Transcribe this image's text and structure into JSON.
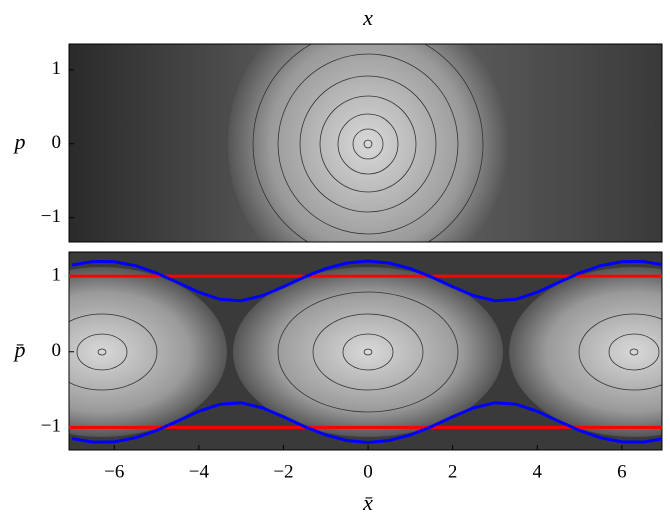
{
  "chart_data": [
    {
      "type": "line",
      "title": "x",
      "ylabel": "p",
      "xlim": [
        -7.07,
        6.95
      ],
      "ylim": [
        -1.33,
        1.35
      ],
      "yticks": [
        {
          "value": -1,
          "label": "−1"
        },
        0,
        1
      ],
      "series": []
    },
    {
      "type": "line",
      "xlabel": "x̄",
      "ylabel": "p̄",
      "xlim": [
        -7.07,
        6.95
      ],
      "ylim": [
        -1.3,
        1.32
      ],
      "xticks": [
        {
          "value": -6,
          "label": "−6"
        },
        {
          "value": -4,
          "label": "−4"
        },
        {
          "value": -2,
          "label": "−2"
        },
        0,
        2,
        4,
        6
      ],
      "yticks": [
        {
          "value": -1,
          "label": "−1"
        },
        0,
        1
      ],
      "series": [
        {
          "color": "#ff0000",
          "x": [
            -7.07,
            6.95
          ],
          "values": [
            1,
            1
          ]
        },
        {
          "color": "#ff0000",
          "x": [
            -7.07,
            6.95
          ],
          "values": [
            -1,
            -1
          ]
        },
        {
          "color": "#0000ff",
          "x": [
            -7,
            -6.5,
            -6,
            -5.5,
            -5,
            -4.5,
            -4,
            -3.5,
            -3,
            -2.5,
            -2,
            -1.5,
            -1,
            -0.5,
            0,
            0.5,
            1,
            1.5,
            2,
            2.5,
            3,
            3.5,
            4,
            4.5,
            5,
            5.5,
            6,
            6.5,
            7
          ],
          "values": [
            1.148,
            1.195,
            1.192,
            1.138,
            1.042,
            0.917,
            0.788,
            0.694,
            0.675,
            0.741,
            0.86,
            0.99,
            1.101,
            1.174,
            1.2,
            1.174,
            1.101,
            0.99,
            0.86,
            0.741,
            0.675,
            0.694,
            0.788,
            0.917,
            1.042,
            1.138,
            1.192,
            1.195,
            1.148
          ]
        },
        {
          "color": "#0000ff",
          "x": [
            -7,
            -6.5,
            -6,
            -5.5,
            -5,
            -4.5,
            -4,
            -3.5,
            -3,
            -2.5,
            -2,
            -1.5,
            -1,
            -0.5,
            0,
            0.5,
            1,
            1.5,
            2,
            2.5,
            3,
            3.5,
            4,
            4.5,
            5,
            5.5,
            6,
            6.5,
            7
          ],
          "values": [
            -1.148,
            -1.195,
            -1.192,
            -1.138,
            -1.042,
            -0.917,
            -0.788,
            -0.694,
            -0.675,
            -0.741,
            -0.86,
            -0.99,
            -1.101,
            -1.174,
            -1.2,
            -1.174,
            -1.101,
            -0.99,
            -0.86,
            -0.741,
            -0.675,
            -0.694,
            -0.788,
            -0.917,
            -1.042,
            -1.138,
            -1.192,
            -1.195,
            -1.148
          ]
        }
      ]
    }
  ]
}
